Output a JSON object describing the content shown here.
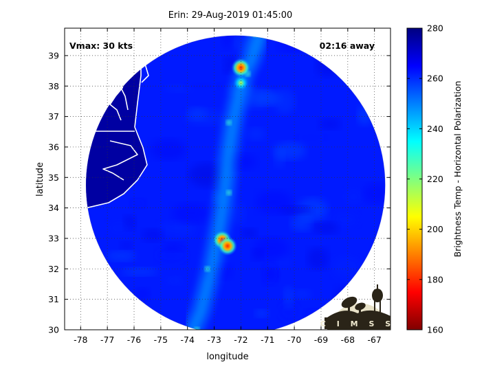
{
  "chart_data": {
    "type": "heatmap",
    "title": "Erin: 29-Aug-2019 01:45:00",
    "xlabel": "longitude",
    "ylabel": "latitude",
    "xlim": [
      -78.6,
      -66.4
    ],
    "ylim": [
      30,
      39.9
    ],
    "x_ticks": [
      -78,
      -77,
      -76,
      -75,
      -74,
      -73,
      -72,
      -71,
      -70,
      -69,
      -68,
      -67
    ],
    "y_ticks": [
      30,
      31,
      32,
      33,
      34,
      35,
      36,
      37,
      38,
      39
    ],
    "grid": true,
    "grid_style": "dotted",
    "annotations": {
      "vmax": "Vmax: 30 kts",
      "time_away": "02:16 away"
    },
    "colorbar": {
      "label": "Brightness Temp - Horizontal Polarization",
      "range": [
        160,
        280
      ],
      "ticks": [
        160,
        180,
        200,
        220,
        240,
        260,
        280
      ],
      "colormap": "jet",
      "colors": [
        "#800000",
        "#ff0000",
        "#ff8000",
        "#ffff00",
        "#80ff80",
        "#00ffff",
        "#0080ff",
        "#0000ff",
        "#000080"
      ]
    },
    "swath": {
      "shape": "circle",
      "center": [
        -72.2,
        34.75
      ],
      "radius_deg_lon": 5.6,
      "background_temp": 262,
      "outside_color": "#ffffff",
      "land_temp": 276,
      "coastline_color": "#ffffff"
    },
    "features": [
      {
        "name": "rainband",
        "path": [
          [
            -71.3,
            39.7
          ],
          [
            -71.6,
            38.9
          ],
          [
            -71.9,
            38.4
          ],
          [
            -72.1,
            37.6
          ],
          [
            -72.3,
            36.8
          ],
          [
            -72.5,
            35.6
          ],
          [
            -72.6,
            34.5
          ],
          [
            -72.8,
            33.4
          ],
          [
            -73.1,
            32.0
          ],
          [
            -73.5,
            30.6
          ],
          [
            -73.8,
            30.0
          ]
        ],
        "temp": 242
      },
      {
        "name": "convective-core-1",
        "lon": -72.0,
        "lat": 38.6,
        "temp": 185
      },
      {
        "name": "convective-core-2",
        "lon": -72.0,
        "lat": 38.1,
        "temp": 218
      },
      {
        "name": "convective-core-3",
        "lon": -72.7,
        "lat": 32.95,
        "temp": 180
      },
      {
        "name": "convective-core-4",
        "lon": -72.5,
        "lat": 32.75,
        "temp": 188
      }
    ]
  },
  "logo": {
    "text": "CIMSS"
  }
}
